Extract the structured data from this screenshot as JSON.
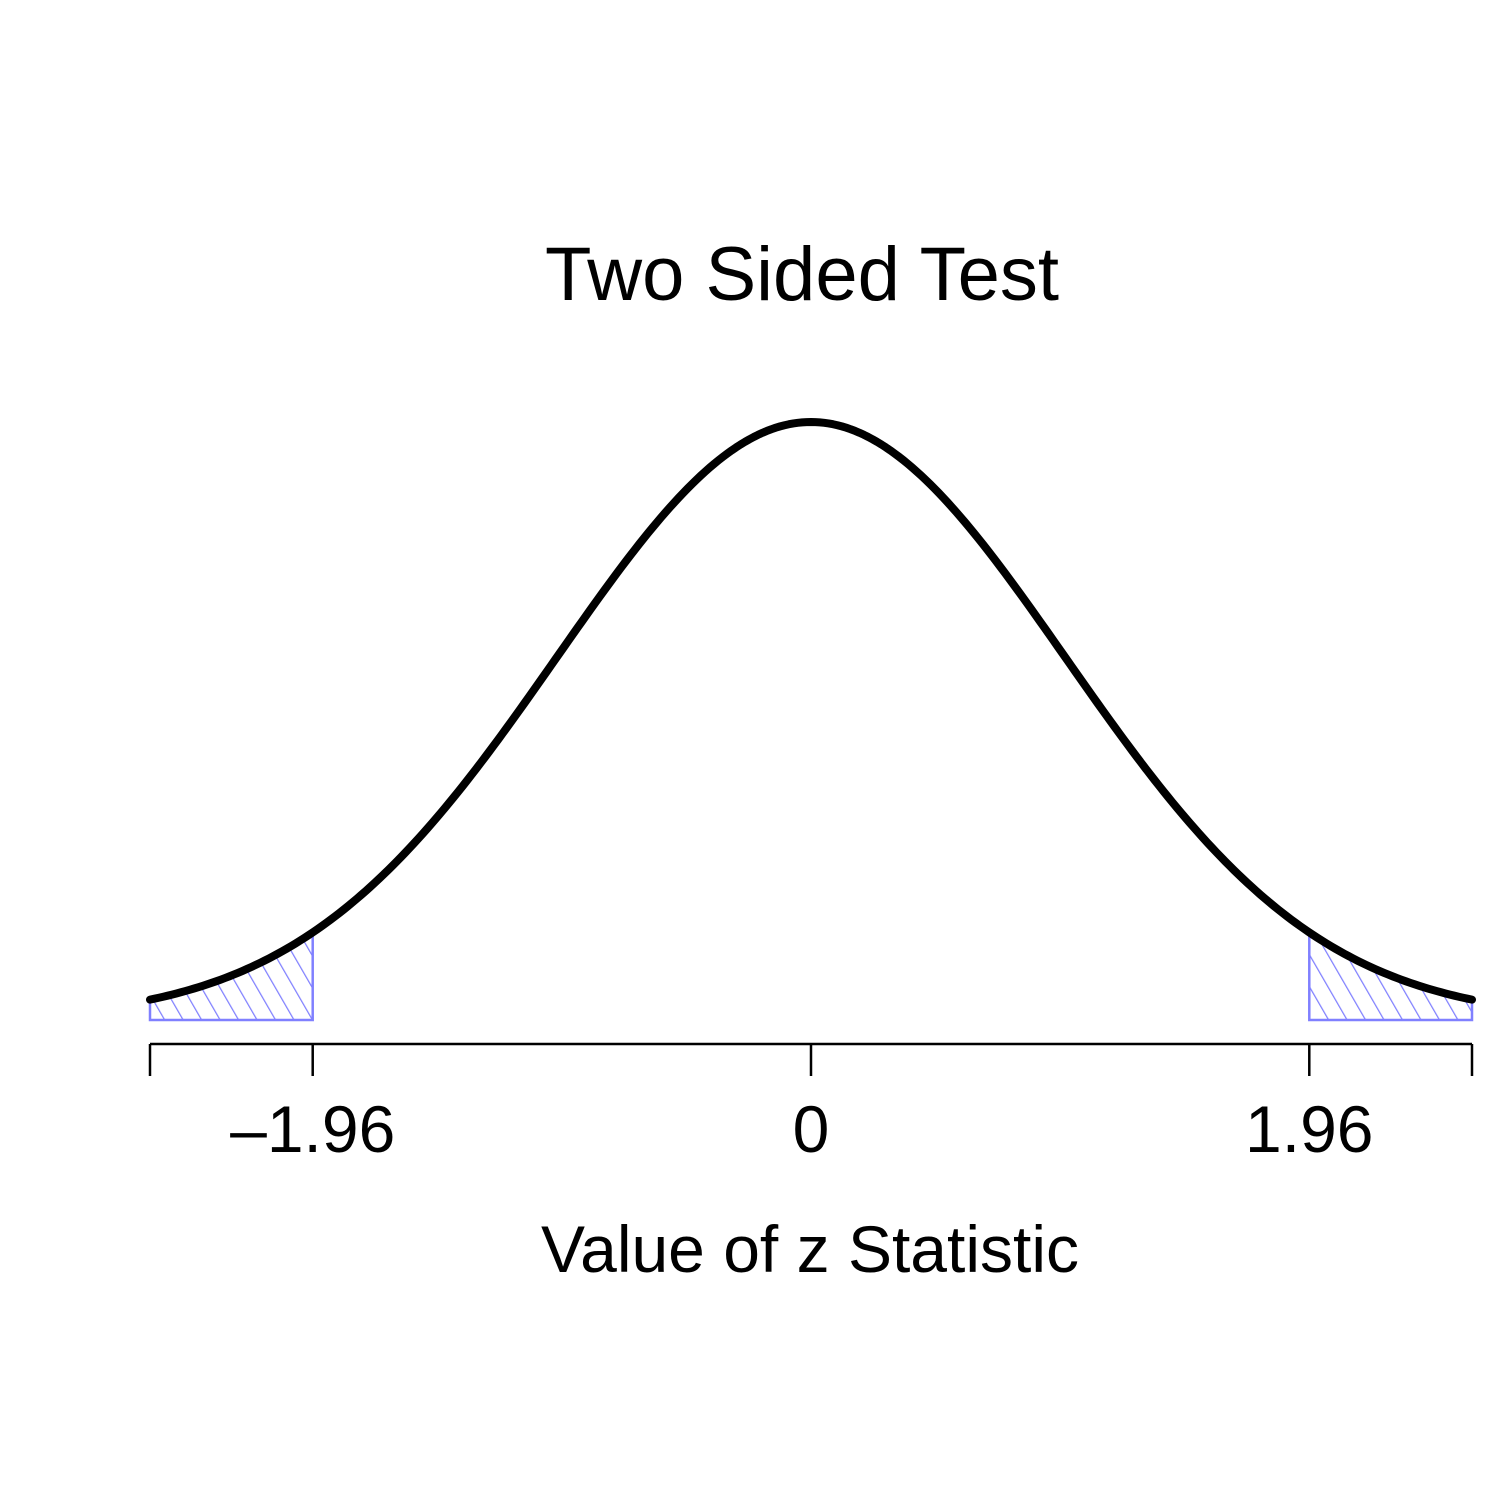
{
  "chart_data": {
    "type": "line",
    "title": "Two Sided Test",
    "subtitle": "",
    "xlabel": "Value of z Statistic",
    "ylabel": "",
    "xlim": [
      -2.6,
      2.6
    ],
    "x_ticks": [
      -2.6,
      -1.96,
      0,
      1.96,
      2.6
    ],
    "tick_labels": [
      "",
      "–1.96",
      "0",
      "1.96",
      ""
    ],
    "series": [
      {
        "type": "standard normal density",
        "mean": 0,
        "sd": 1,
        "color": "#000000"
      }
    ],
    "shaded_regions": [
      {
        "from": -2.6,
        "to": -1.96,
        "fill": "hatched",
        "color": "#8080ff"
      },
      {
        "from": 1.96,
        "to": 2.6,
        "fill": "hatched",
        "color": "#8080ff"
      }
    ],
    "critical_value": 1.96,
    "grid": false,
    "legend": "none"
  }
}
